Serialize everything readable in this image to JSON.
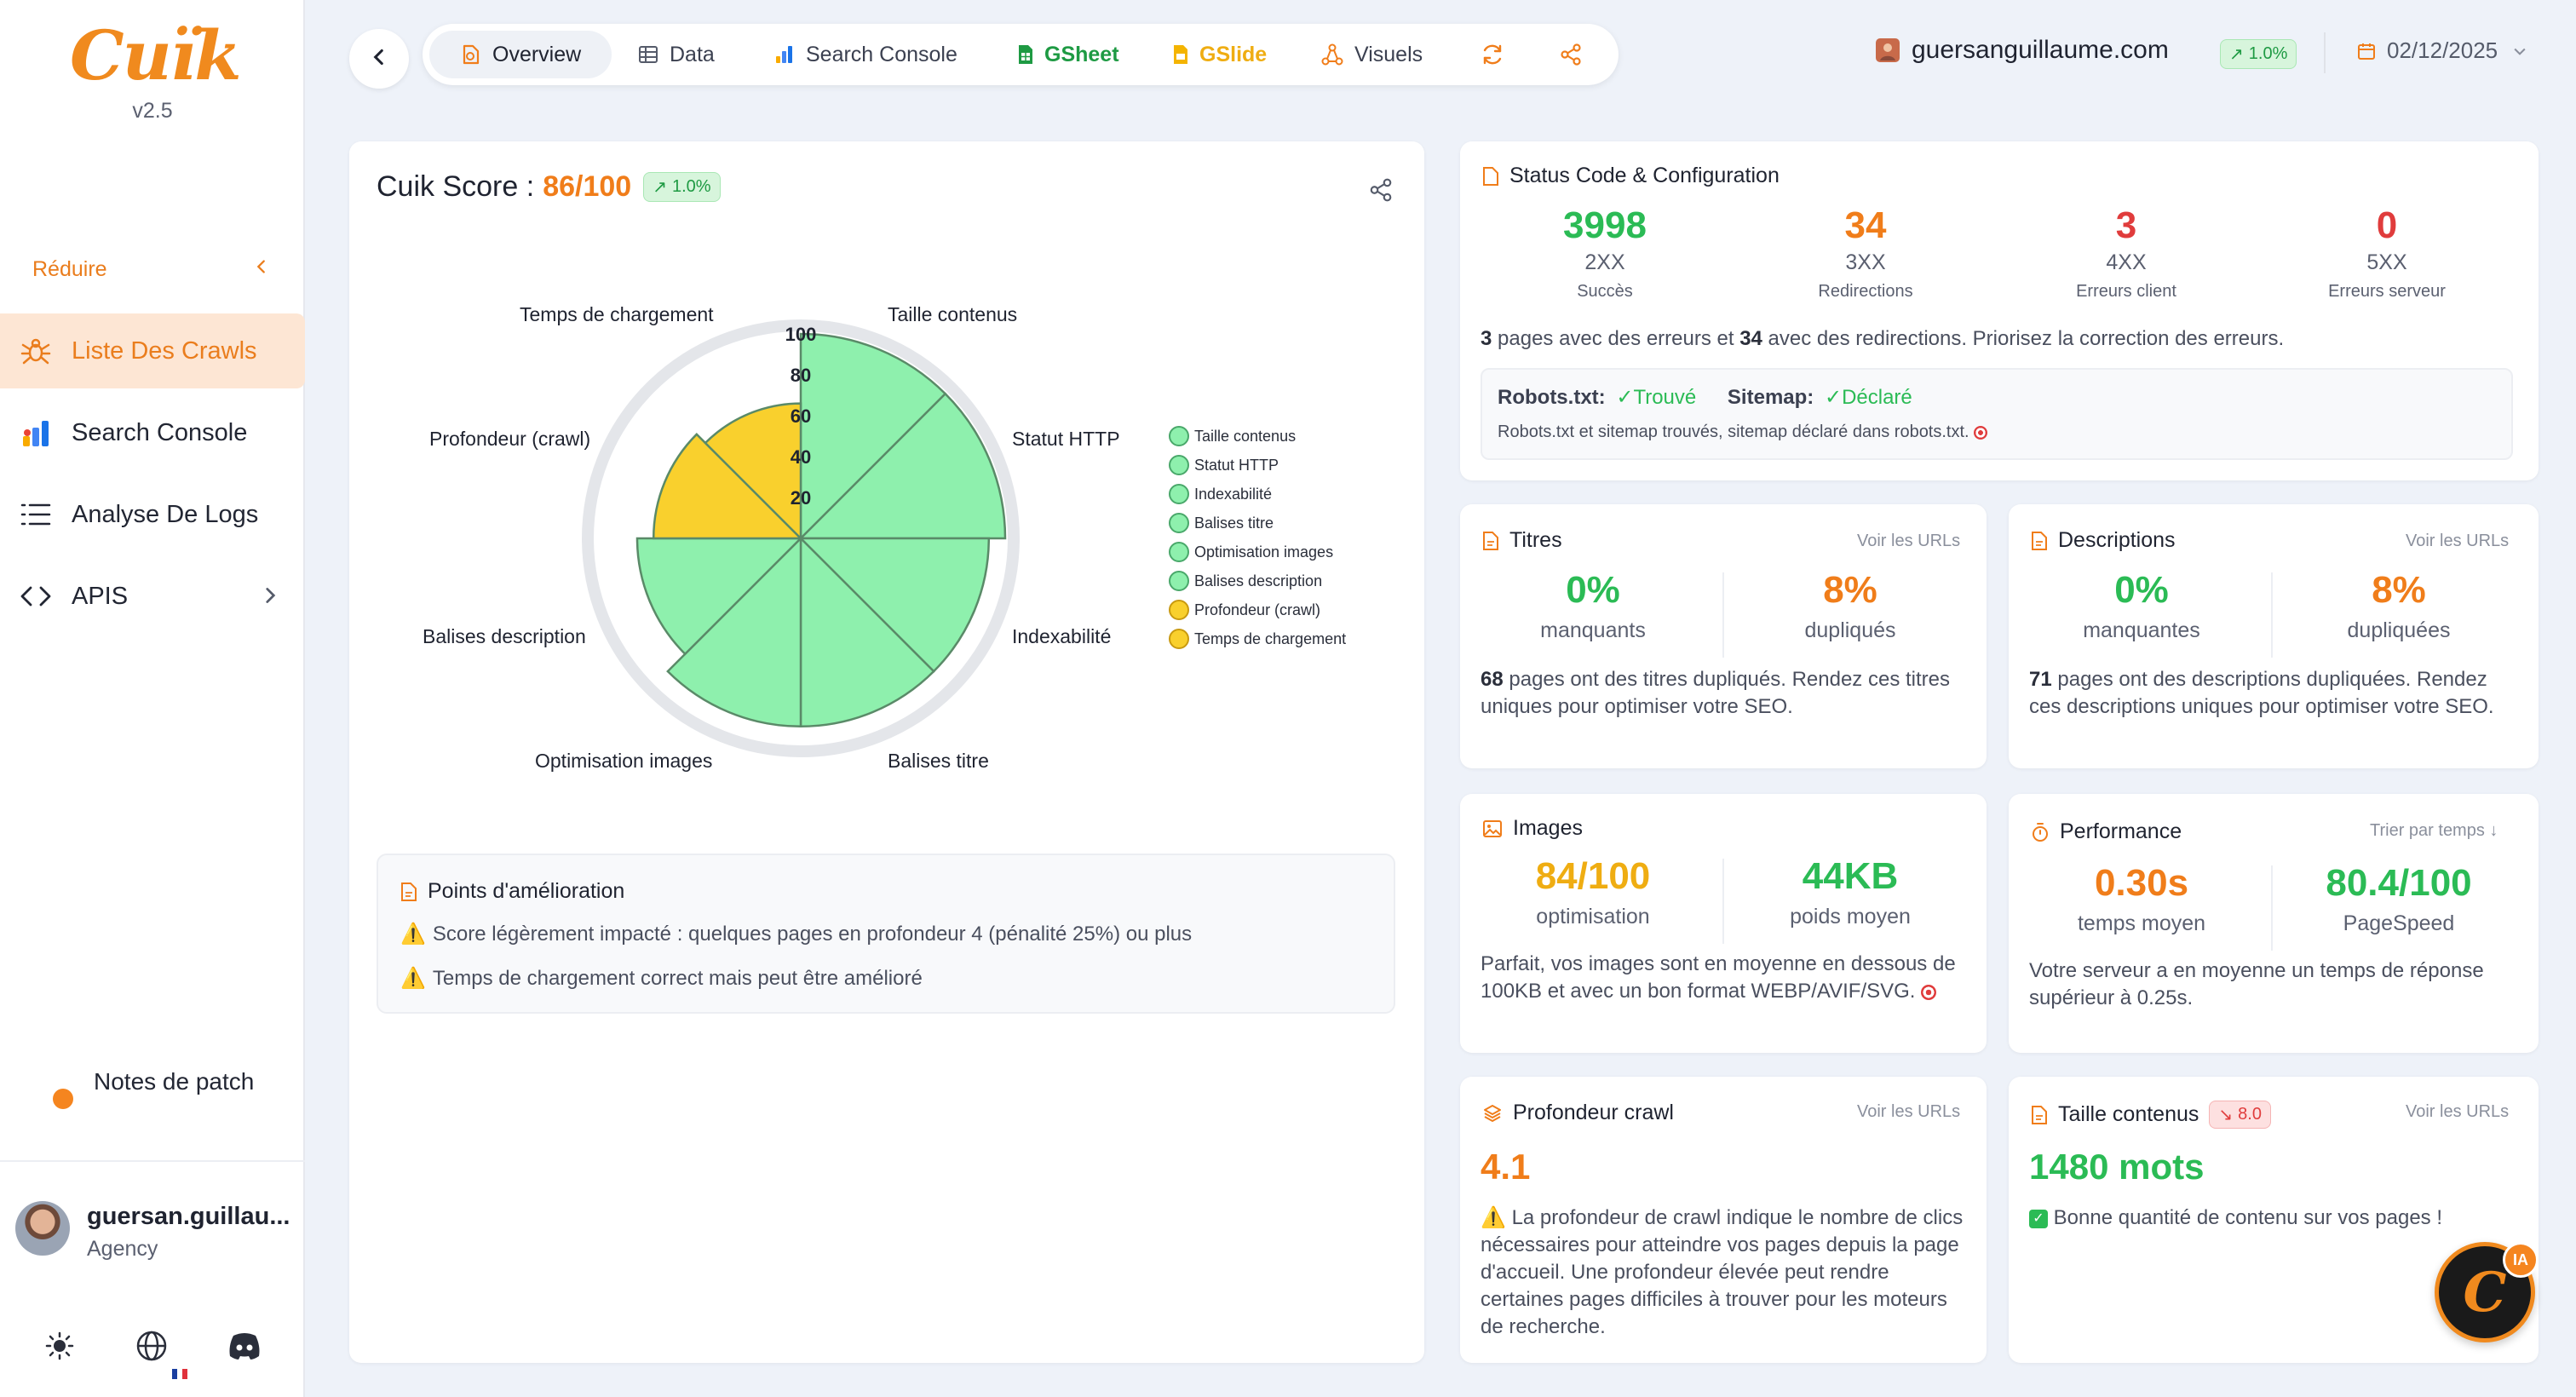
{
  "app": {
    "logo": "Cuïk",
    "version": "v2.5",
    "collapse_label": "Réduire"
  },
  "sidebar": {
    "items": [
      {
        "label": "Liste Des Crawls",
        "icon": "spider-icon",
        "active": true
      },
      {
        "label": "Search Console",
        "icon": "search-console-icon"
      },
      {
        "label": "Analyse De Logs",
        "icon": "list-icon"
      },
      {
        "label": "APIS",
        "icon": "code-icon"
      }
    ],
    "patch_notes": "Notes de patch",
    "user": {
      "name": "guersan.guillau...",
      "role": "Agency"
    },
    "footer_icons": [
      "sun-icon",
      "globe-icon",
      "discord-icon"
    ]
  },
  "toolbar": {
    "tabs": [
      {
        "label": "Overview",
        "icon": "overview-icon",
        "active": true
      },
      {
        "label": "Data",
        "icon": "table-icon"
      },
      {
        "label": "Search Console",
        "icon": "search-console-icon"
      },
      {
        "label": "GSheet",
        "icon": "gsheet-icon",
        "color": "#1e9a43"
      },
      {
        "label": "GSlide",
        "icon": "gslide-icon",
        "color": "#efad12"
      },
      {
        "label": "Visuels",
        "icon": "graph-icon"
      }
    ],
    "domain": "guersanguillaume.com",
    "domain_trend": "1.0%",
    "date": "02/12/2025"
  },
  "score": {
    "label": "Cuik Score :",
    "value": "86/100",
    "trend": "1.0%",
    "chart_data": {
      "type": "radar",
      "categories": [
        "Taille contenus",
        "Statut HTTP",
        "Indexabilité",
        "Balises titre",
        "Optimisation images",
        "Balises description",
        "Profondeur (crawl)",
        "Temps de chargement"
      ],
      "values": [
        100,
        100,
        92,
        92,
        92,
        80,
        72,
        66
      ],
      "rlim": [
        0,
        100
      ],
      "ticks": [
        "20",
        "40",
        "60",
        "80",
        "100"
      ],
      "colors": [
        "#8ef0ad",
        "#8ef0ad",
        "#8ef0ad",
        "#8ef0ad",
        "#8ef0ad",
        "#8ef0ad",
        "#f9d02d",
        "#f9d02d"
      ],
      "legend_position": "right"
    },
    "improvements_title": "Points d'amélioration",
    "improvements": [
      "Score légèrement impacté : quelques pages en profondeur 4 (pénalité 25%) ou plus",
      "Temps de chargement correct mais peut être amélioré"
    ]
  },
  "status": {
    "title": "Status Code & Configuration",
    "codes": [
      {
        "value": "3998",
        "code": "2XX",
        "label": "Succès",
        "color": "#2bbb55"
      },
      {
        "value": "34",
        "code": "3XX",
        "label": "Redirections",
        "color": "#f07d1a"
      },
      {
        "value": "3",
        "code": "4XX",
        "label": "Erreurs client",
        "color": "#e03c3c"
      },
      {
        "value": "0",
        "code": "5XX",
        "label": "Erreurs serveur",
        "color": "#e03c3c"
      }
    ],
    "summary": {
      "errors": "3",
      "t1": " pages avec des erreurs et ",
      "redirects": "34",
      "t2": " avec des redirections. Priorisez la correction des erreurs."
    },
    "robots_label": "Robots.txt:",
    "robots_value": "Trouvé",
    "sitemap_label": "Sitemap:",
    "sitemap_value": "Déclaré",
    "robots_note": "Robots.txt et sitemap trouvés, sitemap déclaré dans robots.txt."
  },
  "titles": {
    "title": "Titres",
    "link": "Voir les URLs",
    "missing": "0%",
    "missing_label": "manquants",
    "dup": "8%",
    "dup_label": "dupliqués",
    "count": "68",
    "text": " pages ont des titres dupliqués. Rendez ces titres uniques pour optimiser votre SEO."
  },
  "descriptions": {
    "title": "Descriptions",
    "link": "Voir les URLs",
    "missing": "0%",
    "missing_label": "manquantes",
    "dup": "8%",
    "dup_label": "dupliquées",
    "count": "71",
    "text": " pages ont des descriptions dupliquées. Rendez ces descriptions uniques pour optimiser votre SEO."
  },
  "images": {
    "title": "Images",
    "opt": "84/100",
    "opt_label": "optimisation",
    "weight": "44KB",
    "weight_label": "poids moyen",
    "text": "Parfait, vos images sont en moyenne en dessous de 100KB et avec un bon format WEBP/AVIF/SVG."
  },
  "performance": {
    "title": "Performance",
    "link": "Trier par temps ↓",
    "time": "0.30s",
    "time_label": "temps moyen",
    "speed": "80.4/100",
    "speed_label": "PageSpeed",
    "text": "Votre serveur a en moyenne un temps de réponse supérieur à 0.25s."
  },
  "depth": {
    "title": "Profondeur crawl",
    "link": "Voir les URLs",
    "value": "4.1",
    "text": "La profondeur de crawl indique le nombre de clics nécessaires pour atteindre vos pages depuis la page d'accueil. Une profondeur élevée peut rendre certaines pages difficiles à trouver pour les moteurs de recherche."
  },
  "content": {
    "title": "Taille contenus",
    "trend": "8.0",
    "link": "Voir les URLs",
    "value": "1480 mots",
    "text": "Bonne quantité de contenu sur vos pages !"
  },
  "ai": {
    "badge": "IA",
    "letter": "C"
  }
}
